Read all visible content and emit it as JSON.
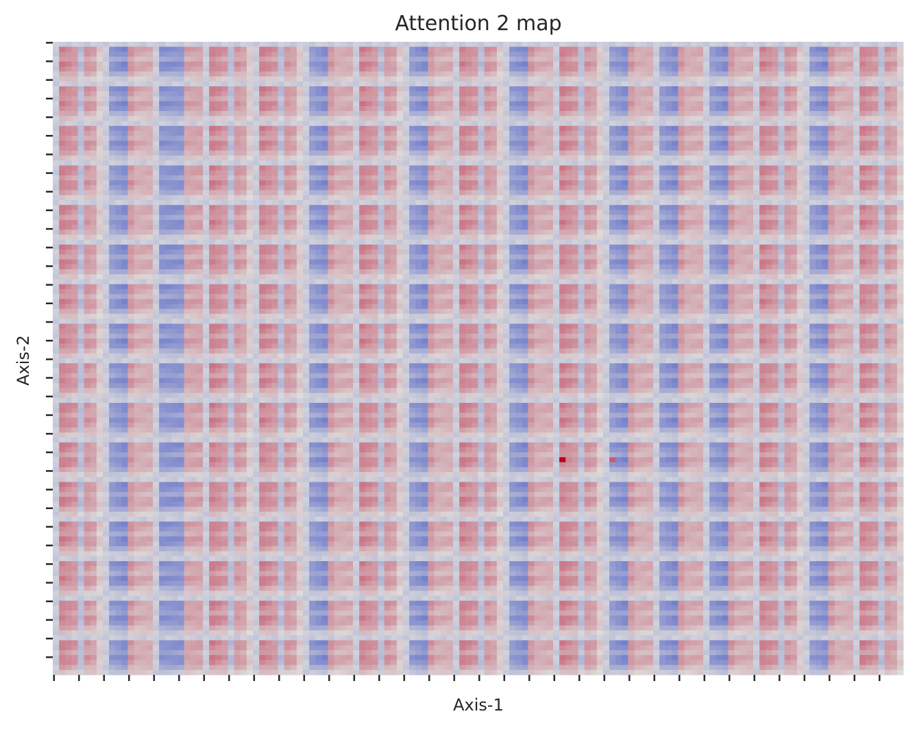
{
  "chart_data": {
    "type": "heatmap",
    "title": "Attention 2 map",
    "xlabel": "Axis-1",
    "ylabel": "Axis-2",
    "colormap": "coolwarm",
    "colors": {
      "low": "#3b4cc0",
      "mid": "#dddddd",
      "high": "#b40426",
      "tick": "#262626"
    },
    "x_tick_count": 34,
    "y_tick_count": 34,
    "x_tick_labels": [],
    "y_tick_labels": [],
    "colorbar": false,
    "grid": false,
    "pattern": {
      "block_cols": 17,
      "block_rows": 16,
      "cells_per_block_x": 8,
      "cells_per_block_y": 8,
      "description_values": "Repeating block structure: each block has a light border band, blue (low) columns and orange (high) columns; values roughly in [-1, 1]"
    },
    "block_column_profile": [
      0.05,
      0.45,
      0.4,
      0.35,
      -0.25,
      0.35,
      0.3,
      0.1
    ],
    "block_type_by_column": [
      0,
      1,
      2,
      0,
      0,
      1,
      0,
      1,
      0,
      1,
      0,
      1,
      1,
      1,
      0,
      1,
      0
    ],
    "block_row_profile": [
      0.6,
      1.0,
      0.9,
      0.7,
      1.0,
      0.9,
      0.6,
      0.3
    ],
    "outliers": [
      {
        "block_col": 10,
        "block_row": 10,
        "value": 1.0
      },
      {
        "block_col": 11,
        "block_row": 10,
        "value": 0.6
      }
    ]
  }
}
